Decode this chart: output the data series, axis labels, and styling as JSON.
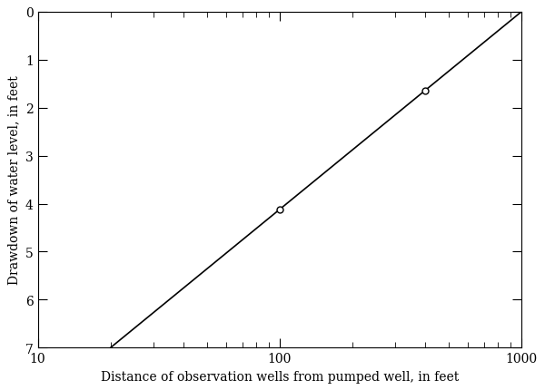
{
  "x_min": 10,
  "x_max": 1000,
  "y_min": 0,
  "y_max": 7,
  "xlabel": "Distance of observation wells from pumped well, in feet",
  "ylabel": "Drawdown of water level, in feet",
  "line_x_start": 20,
  "line_x_end": 1000,
  "line_y_start": 7.0,
  "line_y_end": 0.0,
  "point_x": [
    100,
    400
  ],
  "line_color": "#000000",
  "point_color": "#ffffff",
  "point_edge_color": "#000000",
  "background_color": "#ffffff",
  "font_color": "#000000",
  "x_ticks_major": [
    10,
    100,
    1000
  ],
  "y_ticks_major": [
    0,
    1,
    2,
    3,
    4,
    5,
    6,
    7
  ],
  "label_fontsize": 10,
  "tick_fontsize": 10
}
